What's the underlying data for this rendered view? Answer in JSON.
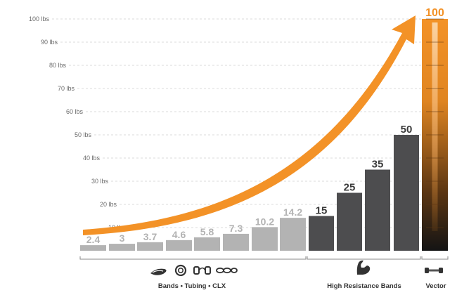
{
  "chart_data": {
    "type": "bar",
    "title": "",
    "xlabel": "",
    "ylabel": "",
    "ylim": [
      0,
      100
    ],
    "y_ticks": [
      "10 lbs",
      "20 lbs",
      "30 lbs",
      "40 lbs",
      "50 lbs",
      "60 lbs",
      "70 lbs",
      "80 lbs",
      "90 lbs",
      "100 lbs"
    ],
    "grid": true,
    "legend": "none",
    "values": [
      2.4,
      3,
      3.7,
      4.6,
      5.8,
      7.3,
      10.2,
      14.2,
      15,
      25,
      35,
      50,
      100
    ],
    "value_labels": [
      "2.4",
      "3",
      "3.7",
      "4.6",
      "5.8",
      "7.3",
      "10.2",
      "14.2",
      "15",
      "25",
      "35",
      "50",
      "100"
    ],
    "groups": [
      {
        "name": "Bands • Tubing • CLX",
        "bar_indices": [
          0,
          1,
          2,
          3,
          4,
          5,
          6,
          7
        ],
        "color": "#b3b3b3",
        "label_color": "#b3b3b3"
      },
      {
        "name": "High Resistance Bands",
        "bar_indices": [
          8,
          9,
          10,
          11
        ],
        "color": "#4d4d4f",
        "label_color": "#3a3a3a"
      },
      {
        "name": "Vector",
        "bar_indices": [
          12
        ],
        "color": "#f39227",
        "label_color": "#f39227"
      }
    ],
    "colors": {
      "accent": "#f39227",
      "light": "#b3b3b3",
      "dark": "#4d4d4f"
    }
  },
  "icons": [
    "band-loop-icon",
    "tubing-roll-icon",
    "handle-tube-icon",
    "clx-loops-icon",
    "flexed-arm-icon",
    "vector-bar-icon"
  ]
}
